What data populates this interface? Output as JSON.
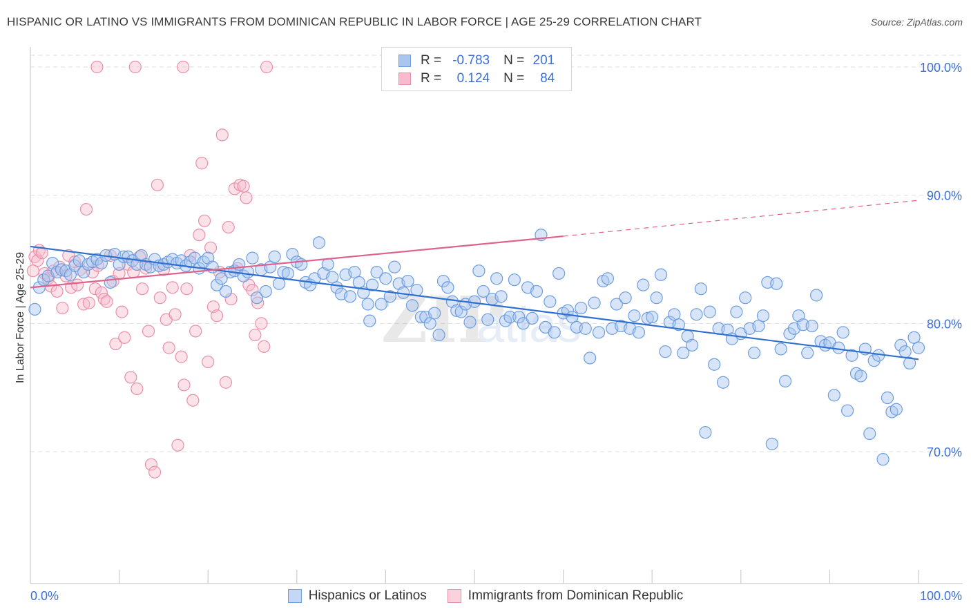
{
  "header": {
    "title": "HISPANIC OR LATINO VS IMMIGRANTS FROM DOMINICAN REPUBLIC IN LABOR FORCE | AGE 25-29 CORRELATION CHART",
    "source": "Source: ZipAtlas.com"
  },
  "stats": {
    "rows": [
      {
        "r_label": "R =",
        "r_value": "-0.783",
        "n_label": "N =",
        "n_value": "201"
      },
      {
        "r_label": "R =",
        "r_value": "0.124",
        "n_label": "N =",
        "n_value": "84"
      }
    ]
  },
  "legend": {
    "items": [
      {
        "label": "Hispanics or Latinos"
      },
      {
        "label": "Immigrants from Dominican Republic"
      }
    ]
  },
  "colors": {
    "blue_fill": "#a9c6ef",
    "blue_stroke": "#6c9de0",
    "blue_line": "#2f6fd0",
    "pink_fill": "#f6bccd",
    "pink_stroke": "#ea8fab",
    "pink_line": "#e0628a",
    "axis_text": "#3b6fd6",
    "grid": "#dddddd"
  },
  "chart_data": {
    "type": "scatter",
    "title": "HISPANIC OR LATINO VS IMMIGRANTS FROM DOMINICAN REPUBLIC IN LABOR FORCE | AGE 25-29 CORRELATION CHART",
    "xlabel": "",
    "ylabel": "In Labor Force | Age 25-29",
    "xlim": [
      0,
      100
    ],
    "ylim": [
      60,
      101
    ],
    "x_tick_labels": [
      "0.0%",
      "100.0%"
    ],
    "y_ticks": [
      70,
      80,
      90,
      100
    ],
    "y_tick_labels": [
      "70.0%",
      "80.0%",
      "90.0%",
      "100.0%"
    ],
    "grid": true,
    "watermark": "ZIPatlas",
    "series": [
      {
        "name": "Hispanics or Latinos",
        "r": -0.783,
        "n": 201,
        "trend": {
          "x": [
            0,
            100
          ],
          "y": [
            86.0,
            77.2
          ]
        },
        "points": [
          [
            0.5,
            81.1
          ],
          [
            1,
            82.8
          ],
          [
            1.5,
            83.4
          ],
          [
            2,
            83.7
          ],
          [
            2.5,
            84.7
          ],
          [
            3,
            84.0
          ],
          [
            3.5,
            84.2
          ],
          [
            4,
            84.1
          ],
          [
            4.5,
            83.8
          ],
          [
            5,
            84.5
          ],
          [
            5.5,
            84.9
          ],
          [
            6,
            84.0
          ],
          [
            6.5,
            84.6
          ],
          [
            7,
            84.8
          ],
          [
            7.5,
            85.0
          ],
          [
            8,
            84.7
          ],
          [
            8.5,
            85.3
          ],
          [
            9,
            83.2
          ],
          [
            9.5,
            85.4
          ],
          [
            10,
            84.6
          ],
          [
            10.5,
            85.2
          ],
          [
            11,
            85.2
          ],
          [
            11.5,
            84.9
          ],
          [
            12,
            84.6
          ],
          [
            12.5,
            85.3
          ],
          [
            13,
            84.6
          ],
          [
            13.5,
            84.4
          ],
          [
            14,
            85.0
          ],
          [
            14.5,
            84.5
          ],
          [
            15,
            84.6
          ],
          [
            15.5,
            84.8
          ],
          [
            16,
            85.0
          ],
          [
            16.5,
            84.7
          ],
          [
            17,
            84.9
          ],
          [
            17.5,
            84.5
          ],
          [
            18,
            84.8
          ],
          [
            18.5,
            85.1
          ],
          [
            19,
            84.3
          ],
          [
            19.5,
            84.8
          ],
          [
            20,
            85.1
          ],
          [
            20.5,
            84.4
          ],
          [
            21,
            83.0
          ],
          [
            21.5,
            83.5
          ],
          [
            22,
            82.5
          ],
          [
            22.5,
            84.0
          ],
          [
            23,
            84.1
          ],
          [
            23.5,
            84.6
          ],
          [
            24,
            83.7
          ],
          [
            24.5,
            84.0
          ],
          [
            25,
            85.1
          ],
          [
            25.5,
            82.0
          ],
          [
            26,
            84.2
          ],
          [
            26.5,
            82.5
          ],
          [
            27,
            84.4
          ],
          [
            27.5,
            85.2
          ],
          [
            28,
            83.1
          ],
          [
            28.5,
            84.0
          ],
          [
            29,
            83.9
          ],
          [
            29.5,
            85.4
          ],
          [
            30,
            84.8
          ],
          [
            30.5,
            84.6
          ],
          [
            31,
            83.2
          ],
          [
            31.5,
            83.0
          ],
          [
            32,
            83.5
          ],
          [
            32.5,
            86.3
          ],
          [
            33,
            83.9
          ],
          [
            33.5,
            84.6
          ],
          [
            34,
            83.6
          ],
          [
            34.5,
            82.8
          ],
          [
            35,
            82.3
          ],
          [
            35.5,
            83.8
          ],
          [
            36,
            82.1
          ],
          [
            36.5,
            84.0
          ],
          [
            37,
            83.2
          ],
          [
            37.5,
            82.4
          ],
          [
            38,
            81.5
          ],
          [
            38.5,
            83.0
          ],
          [
            39,
            84.0
          ],
          [
            39.5,
            81.5
          ],
          [
            40,
            83.5
          ],
          [
            40.5,
            82.1
          ],
          [
            41,
            84.4
          ],
          [
            41.5,
            83.1
          ],
          [
            42,
            82.4
          ],
          [
            42.5,
            83.3
          ],
          [
            43,
            81.4
          ],
          [
            43.5,
            82.6
          ],
          [
            44,
            80.5
          ],
          [
            44.5,
            80.5
          ],
          [
            45,
            80.0
          ],
          [
            45.5,
            80.8
          ],
          [
            46,
            79.1
          ],
          [
            46.5,
            83.3
          ],
          [
            47,
            82.8
          ],
          [
            47.5,
            81.7
          ],
          [
            48,
            81.0
          ],
          [
            48.5,
            80.9
          ],
          [
            49,
            81.5
          ],
          [
            49.5,
            80.1
          ],
          [
            50,
            81.7
          ],
          [
            50.5,
            84.1
          ],
          [
            51,
            82.5
          ],
          [
            51.5,
            80.3
          ],
          [
            52,
            81.9
          ],
          [
            52.5,
            83.5
          ],
          [
            53,
            82.1
          ],
          [
            53.5,
            80.2
          ],
          [
            54,
            80.5
          ],
          [
            54.5,
            83.4
          ],
          [
            55,
            80.5
          ],
          [
            55.5,
            80.0
          ],
          [
            56,
            82.8
          ],
          [
            56.5,
            80.4
          ],
          [
            57,
            82.5
          ],
          [
            57.5,
            86.9
          ],
          [
            58,
            79.7
          ],
          [
            58.5,
            81.7
          ],
          [
            59,
            79.3
          ],
          [
            59.5,
            83.9
          ],
          [
            60,
            80.8
          ],
          [
            60.5,
            81.0
          ],
          [
            61,
            80.5
          ],
          [
            61.5,
            79.7
          ],
          [
            62,
            81.2
          ],
          [
            62.5,
            79.6
          ],
          [
            63,
            77.3
          ],
          [
            63.5,
            81.6
          ],
          [
            64,
            79.3
          ],
          [
            64.5,
            83.3
          ],
          [
            65,
            83.5
          ],
          [
            65.5,
            79.6
          ],
          [
            66,
            81.5
          ],
          [
            66.5,
            79.8
          ],
          [
            67,
            82.0
          ],
          [
            67.5,
            79.6
          ],
          [
            68,
            80.6
          ],
          [
            68.5,
            79.3
          ],
          [
            69,
            83.0
          ],
          [
            69.5,
            80.4
          ],
          [
            70,
            80.5
          ],
          [
            70.5,
            82.0
          ],
          [
            71,
            83.8
          ],
          [
            71.5,
            77.8
          ],
          [
            72,
            80.1
          ],
          [
            72.5,
            80.7
          ],
          [
            73,
            79.9
          ],
          [
            73.5,
            77.7
          ],
          [
            74,
            79.0
          ],
          [
            74.5,
            78.3
          ],
          [
            75,
            80.7
          ],
          [
            75.5,
            82.7
          ],
          [
            76,
            71.5
          ],
          [
            76.5,
            80.9
          ],
          [
            77,
            76.8
          ],
          [
            77.5,
            79.6
          ],
          [
            78,
            75.4
          ],
          [
            78.5,
            79.5
          ],
          [
            79,
            78.8
          ],
          [
            79.5,
            80.9
          ],
          [
            80,
            79.2
          ],
          [
            80.5,
            82.0
          ],
          [
            81,
            79.6
          ],
          [
            81.5,
            77.7
          ],
          [
            82,
            79.8
          ],
          [
            82.5,
            80.6
          ],
          [
            83,
            83.2
          ],
          [
            83.5,
            70.6
          ],
          [
            84,
            83.1
          ],
          [
            84.5,
            78.0
          ],
          [
            85,
            75.5
          ],
          [
            85.5,
            79.2
          ],
          [
            86,
            79.6
          ],
          [
            86.5,
            80.6
          ],
          [
            87,
            79.9
          ],
          [
            87.5,
            77.7
          ],
          [
            88,
            79.8
          ],
          [
            88.5,
            82.2
          ],
          [
            89,
            78.6
          ],
          [
            89.5,
            78.3
          ],
          [
            90,
            78.5
          ],
          [
            90.5,
            74.4
          ],
          [
            91,
            78.1
          ],
          [
            91.5,
            79.3
          ],
          [
            92,
            73.2
          ],
          [
            92.5,
            77.5
          ],
          [
            93,
            76.1
          ],
          [
            93.5,
            75.9
          ],
          [
            94,
            78.0
          ],
          [
            94.5,
            71.4
          ],
          [
            95,
            77.1
          ],
          [
            95.5,
            77.5
          ],
          [
            96,
            69.4
          ],
          [
            96.5,
            74.2
          ],
          [
            97,
            73.1
          ],
          [
            97.5,
            73.3
          ],
          [
            98,
            78.3
          ],
          [
            98.5,
            77.8
          ],
          [
            99,
            76.9
          ],
          [
            99.5,
            78.9
          ],
          [
            100,
            78.1
          ],
          [
            38.2,
            80.2
          ]
        ]
      },
      {
        "name": "Immigrants from Dominican Republic",
        "r": 0.124,
        "n": 84,
        "trend": {
          "x": [
            0,
            60
          ],
          "y": [
            82.8,
            86.8
          ]
        },
        "trend_extension": {
          "x": [
            60,
            100
          ],
          "y": [
            86.8,
            89.6
          ]
        },
        "points": [
          [
            0.5,
            85.2
          ],
          [
            0.8,
            84.9
          ],
          [
            1,
            85.7
          ],
          [
            1.3,
            85.5
          ],
          [
            1.6,
            83.9
          ],
          [
            2,
            83.5
          ],
          [
            2.3,
            82.9
          ],
          [
            2.6,
            84.1
          ],
          [
            3,
            82.5
          ],
          [
            3.3,
            84.4
          ],
          [
            3.6,
            81.2
          ],
          [
            4,
            83.7
          ],
          [
            4.3,
            85.3
          ],
          [
            4.6,
            82.8
          ],
          [
            5,
            84.8
          ],
          [
            5.3,
            83.0
          ],
          [
            5.6,
            84.2
          ],
          [
            6,
            81.5
          ],
          [
            6.3,
            88.9
          ],
          [
            6.6,
            81.6
          ],
          [
            7,
            84.0
          ],
          [
            7.3,
            82.7
          ],
          [
            7.6,
            84.5
          ],
          [
            8,
            82.4
          ],
          [
            8.3,
            81.9
          ],
          [
            8.6,
            81.7
          ],
          [
            9,
            85.3
          ],
          [
            9.3,
            83.3
          ],
          [
            9.6,
            78.4
          ],
          [
            10,
            83.9
          ],
          [
            10.3,
            80.9
          ],
          [
            10.6,
            78.9
          ],
          [
            11,
            84.6
          ],
          [
            11.3,
            75.8
          ],
          [
            11.6,
            84.0
          ],
          [
            12,
            74.9
          ],
          [
            12.3,
            85.2
          ],
          [
            12.6,
            82.7
          ],
          [
            13,
            84.3
          ],
          [
            13.3,
            79.4
          ],
          [
            13.6,
            69.0
          ],
          [
            14,
            68.4
          ],
          [
            14.3,
            90.8
          ],
          [
            14.6,
            82.0
          ],
          [
            15,
            84.2
          ],
          [
            15.3,
            80.3
          ],
          [
            15.6,
            78.1
          ],
          [
            16,
            82.8
          ],
          [
            16.3,
            80.7
          ],
          [
            16.6,
            70.5
          ],
          [
            17,
            77.4
          ],
          [
            17.3,
            75.2
          ],
          [
            17.6,
            82.7
          ],
          [
            18,
            85.3
          ],
          [
            18.3,
            74.0
          ],
          [
            18.6,
            79.4
          ],
          [
            19,
            86.9
          ],
          [
            19.3,
            92.5
          ],
          [
            19.6,
            88.0
          ],
          [
            20,
            77.0
          ],
          [
            20.3,
            85.9
          ],
          [
            20.6,
            81.3
          ],
          [
            21,
            80.6
          ],
          [
            21.3,
            84.0
          ],
          [
            21.6,
            94.7
          ],
          [
            22,
            75.4
          ],
          [
            22.3,
            87.5
          ],
          [
            22.6,
            81.9
          ],
          [
            23,
            90.5
          ],
          [
            23.3,
            84.3
          ],
          [
            23.6,
            90.8
          ],
          [
            24,
            90.7
          ],
          [
            24.3,
            89.8
          ],
          [
            24.6,
            83.0
          ],
          [
            25,
            82.6
          ],
          [
            25.3,
            79.1
          ],
          [
            25.6,
            81.6
          ],
          [
            26,
            80.0
          ],
          [
            26.3,
            78.2
          ],
          [
            26.6,
            100.0
          ],
          [
            7.5,
            100.0
          ],
          [
            11.8,
            100.0
          ],
          [
            17.2,
            100.0
          ],
          [
            0.3,
            84.1
          ]
        ]
      }
    ]
  }
}
